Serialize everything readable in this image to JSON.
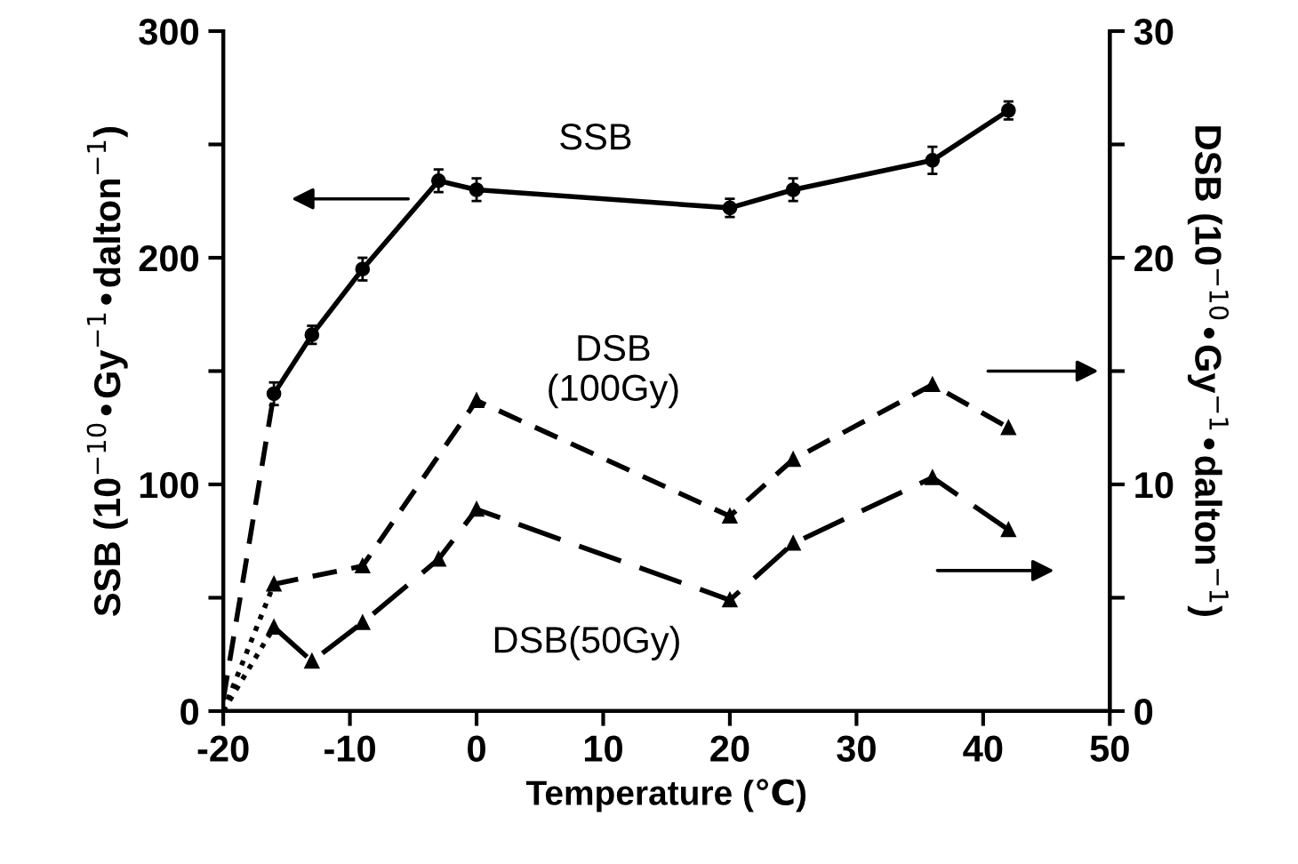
{
  "chart_data": {
    "type": "line",
    "xlabel": "Temperature (℃)",
    "ylabel": "SSB (10$^{−10}$•Gy$^{−1}$•dalton$^{−1}$)",
    "y2label": "DSB (10$^{−10}$•Gy$^{−1}$•dalton$^{−1}$)",
    "xlim": [
      -20,
      50
    ],
    "xticks": [
      -20,
      -10,
      0,
      10,
      20,
      30,
      40,
      50
    ],
    "ylim": [
      0,
      300
    ],
    "yticks": [
      0,
      {
        "value": 50,
        "label": null
      },
      100,
      {
        "value": 150,
        "label": null
      },
      200,
      {
        "value": 250,
        "label": null
      },
      300
    ],
    "y2lim": [
      0,
      30
    ],
    "y2ticks": [
      0,
      {
        "value": 5,
        "label": null
      },
      10,
      {
        "value": 15,
        "label": null
      },
      20,
      {
        "value": 25,
        "label": null
      },
      30
    ],
    "grid": false,
    "legend": false,
    "series": [
      {
        "color": "#000000",
        "line_style": "solid",
        "marker": "circle",
        "x": [
          -16,
          -13,
          -9,
          -3,
          0,
          20,
          25,
          36,
          42
        ],
        "values": [
          140,
          166,
          195,
          234,
          230,
          222,
          230,
          243,
          265
        ],
        "errors": [
          5,
          4,
          5,
          5,
          5,
          4,
          5,
          6,
          4
        ]
      },
      {
        "color": "#000000",
        "line_style": "dashed",
        "marker": "none",
        "x": [
          -20,
          -16
        ],
        "values": [
          5,
          140
        ]
      },
      {
        "color": "#000000",
        "line_style": "dashed",
        "marker": "triangle",
        "axis": "y2",
        "x": [
          -16,
          -9,
          0,
          20,
          25,
          36,
          42
        ],
        "values": [
          5.6,
          6.4,
          13.7,
          8.6,
          11.1,
          14.4,
          12.5
        ]
      },
      {
        "color": "#000000",
        "line_style": "dotted",
        "marker": "none",
        "axis": "y2",
        "x": [
          -20,
          -16
        ],
        "values": [
          0,
          5.6
        ]
      },
      {
        "color": "#000000",
        "line_style": "longdash",
        "marker": "triangle",
        "axis": "y2",
        "x": [
          -16,
          -13,
          -9,
          -3,
          0,
          20,
          25,
          36,
          42
        ],
        "values": [
          3.7,
          2.2,
          3.9,
          6.7,
          8.9,
          4.9,
          7.4,
          10.3,
          8.0
        ]
      },
      {
        "color": "#000000",
        "line_style": "dotted",
        "marker": "none",
        "axis": "y2",
        "x": [
          -20,
          -16
        ],
        "values": [
          0,
          3.7
        ]
      }
    ],
    "annotations": [
      "SSB",
      "DSB\n(100Gy)",
      "DSB(50Gy)"
    ]
  }
}
